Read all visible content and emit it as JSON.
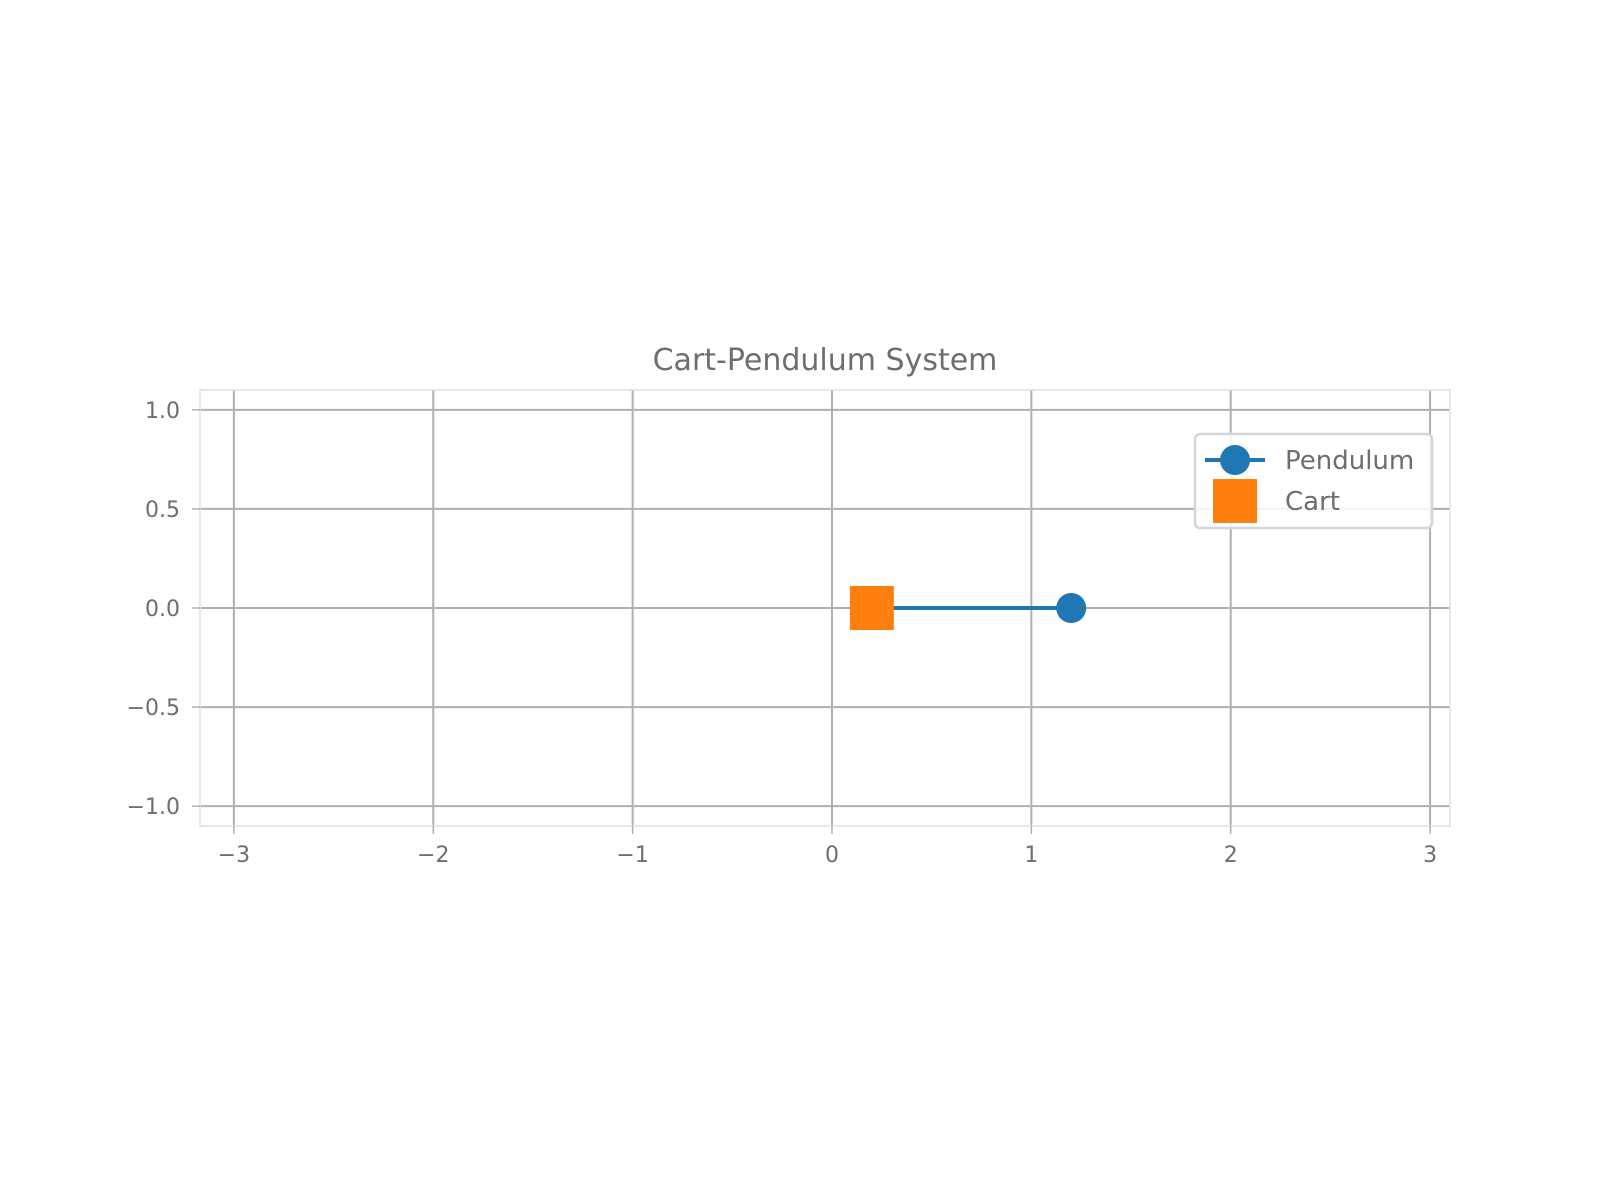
{
  "colors": {
    "pendulum": "#1f77b4",
    "cart": "#ff7f0e",
    "grid": "#b0b0b0",
    "axes_edge": "#e0e0e0",
    "text": "#6e6e6e"
  },
  "chart_data": {
    "type": "line",
    "title": "Cart-Pendulum System",
    "xlabel": "",
    "ylabel": "",
    "xlim": [
      -3.17,
      3.1
    ],
    "ylim": [
      -1.1,
      1.1
    ],
    "grid": true,
    "legend_position": "top-right",
    "x_ticks": [
      -3,
      -2,
      -1,
      0,
      1,
      2,
      3
    ],
    "x_tick_labels": [
      "−3",
      "−2",
      "−1",
      "0",
      "1",
      "2",
      "3"
    ],
    "y_ticks": [
      1.0,
      0.5,
      0.0,
      -0.5,
      -1.0
    ],
    "y_tick_labels": [
      "1.0",
      "0.5",
      "0.0",
      "−0.5",
      "−1.0"
    ],
    "series": [
      {
        "name": "Pendulum",
        "marker": "circle",
        "line": true,
        "color": "#1f77b4",
        "x": [
          0.2,
          1.2
        ],
        "y": [
          0.0,
          0.0
        ]
      },
      {
        "name": "Cart",
        "marker": "square",
        "line": false,
        "color": "#ff7f0e",
        "x": [
          0.2
        ],
        "y": [
          0.0
        ]
      }
    ],
    "pendulum_bob_marker_only_last": true
  }
}
